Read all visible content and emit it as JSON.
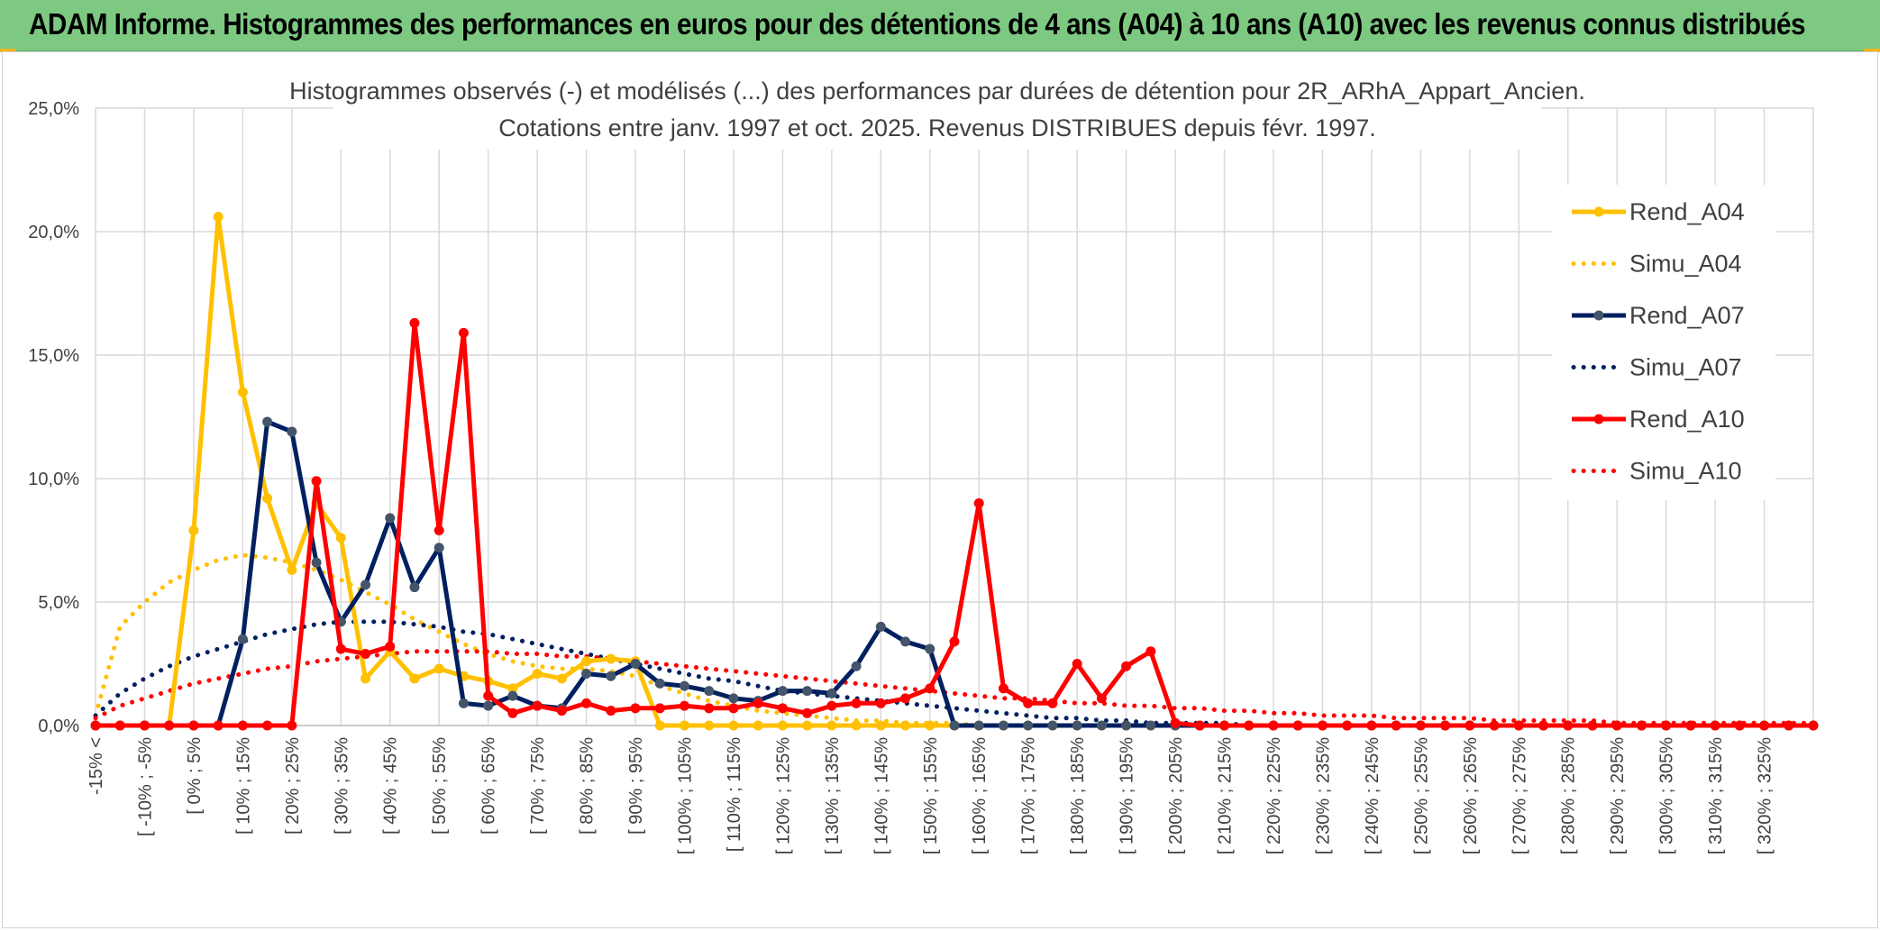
{
  "banner": {
    "title": "ADAM Informe. Histogrammes des performances en euros pour des détentions de 4 ans (A04) à 10 ans (A10) avec les revenus connus distribués"
  },
  "colors": {
    "banner_bg": "#7dc982",
    "a04": "#ffc000",
    "a07": "#002060",
    "a07_marker": "#44546a",
    "a10": "#ff0000",
    "grid": "#d9d9d9"
  },
  "chart_data": {
    "type": "line",
    "title_line1": "Histogrammes observés (-) et modélisés (...) des performances par durées de détention pour 2R_ARhA_Appart_Ancien.",
    "title_line2": "Cotations entre janv. 1997 et oct. 2025. Revenus DISTRIBUES depuis févr. 1997.",
    "ylim": [
      0,
      25
    ],
    "yticks": [
      0,
      5,
      10,
      15,
      20,
      25
    ],
    "ytick_labels": [
      "0,0%",
      "5,0%",
      "10,0%",
      "15,0%",
      "20,0%",
      "25,0%"
    ],
    "grid": true,
    "legend_position": "right",
    "categories": [
      "-15% <",
      "[ -15% ; -10%",
      "[ -10% ; -5%",
      "[ -5% ; 0%",
      "[ 0% ; 5%",
      "[ 5% ; 10%",
      "[ 10% ; 15%",
      "[ 15% ; 20%",
      "[ 20% ; 25%",
      "[ 25% ; 30%",
      "[ 30% ; 35%",
      "[ 35% ; 40%",
      "[ 40% ; 45%",
      "[ 45% ; 50%",
      "[ 50% ; 55%",
      "[ 55% ; 60%",
      "[ 60% ; 65%",
      "[ 65% ; 70%",
      "[ 70% ; 75%",
      "[ 75% ; 80%",
      "[ 80% ; 85%",
      "[ 85% ; 90%",
      "[ 90% ; 95%",
      "[ 95% ; 100%",
      "[ 100% ; 105%",
      "[ 105% ; 110%",
      "[ 110% ; 115%",
      "[ 115% ; 120%",
      "[ 120% ; 125%",
      "[ 125% ; 130%",
      "[ 130% ; 135%",
      "[ 135% ; 140%",
      "[ 140% ; 145%",
      "[ 145% ; 150%",
      "[ 150% ; 155%",
      "[ 155% ; 160%",
      "[ 160% ; 165%",
      "[ 165% ; 170%",
      "[ 170% ; 175%",
      "[ 175% ; 180%",
      "[ 180% ; 185%",
      "[ 185% ; 190%",
      "[ 190% ; 195%",
      "[ 195% ; 200%",
      "[ 200% ; 205%",
      "[ 205% ; 210%",
      "[ 210% ; 215%",
      "[ 215% ; 220%",
      "[ 220% ; 225%",
      "[ 225% ; 230%",
      "[ 230% ; 235%",
      "[ 235% ; 240%",
      "[ 240% ; 245%",
      "[ 245% ; 250%",
      "[ 250% ; 255%",
      "[ 255% ; 260%",
      "[ 260% ; 265%",
      "[ 265% ; 270%",
      "[ 270% ; 275%",
      "[ 275% ; 280%",
      "[ 280% ; 285%",
      "[ 285% ; 290%",
      "[ 290% ; 295%",
      "[ 295% ; 300%",
      "[ 300% ; 305%",
      "[ 305% ; 310%",
      "[ 310% ; 315%",
      "[ 315% ; 320%",
      "[ 320% ; 325%",
      "[ 325% ; 330%",
      "[ 330% ; 335%"
    ],
    "visible_xtick_labels": [
      "-15% <",
      "[ -10% ; -5%",
      "[ 0% ; 5%",
      "[ 10% ; 15%",
      "[ 20% ; 25%",
      "[ 30% ; 35%",
      "[ 40% ; 45%",
      "[ 50% ; 55%",
      "[ 60% ; 65%",
      "[ 70% ; 75%",
      "[ 80% ; 85%",
      "[ 90% ; 95%",
      "[ 100% ; 105%",
      "[ 110% ; 115%",
      "[ 120% ; 125%",
      "[ 130% ; 135%",
      "[ 140% ; 145%",
      "[ 150% ; 155%",
      "[ 160% ; 165%",
      "[ 170% ; 175%",
      "[ 180% ; 185%",
      "[ 190% ; 195%",
      "[ 200% ; 205%",
      "[ 210% ; 215%",
      "[ 220% ; 225%",
      "[ 230% ; 235%",
      "[ 240% ; 245%",
      "[ 250% ; 255%",
      "[ 260% ; 265%",
      "[ 270% ; 275%",
      "[ 280% ; 285%",
      "[ 290% ; 295%",
      "[ 300% ; 305%",
      "[ 310% ; 315%",
      "[ 320% ; 325%"
    ],
    "series": [
      {
        "name": "Rend_A04",
        "style": "solid",
        "color": "#ffc000",
        "values": [
          0,
          0,
          0,
          0,
          7.9,
          20.6,
          13.5,
          9.2,
          6.3,
          9.0,
          7.6,
          1.9,
          3.0,
          1.9,
          2.3,
          2.0,
          1.8,
          1.5,
          2.1,
          1.9,
          2.6,
          2.7,
          2.6,
          0,
          0,
          0,
          0,
          0,
          0,
          0,
          0,
          0,
          0,
          0,
          0,
          0,
          0,
          0,
          0,
          0,
          0,
          0,
          0,
          0,
          0,
          0,
          0,
          0,
          0,
          0,
          0,
          0,
          0,
          0,
          0,
          0,
          0,
          0,
          0,
          0,
          0,
          0,
          0,
          0,
          0,
          0,
          0,
          0,
          0,
          0,
          0
        ]
      },
      {
        "name": "Simu_A04",
        "style": "dotted",
        "color": "#ffc000",
        "values": [
          0.4,
          4.0,
          5.0,
          5.8,
          6.3,
          6.7,
          6.9,
          6.8,
          6.6,
          6.3,
          5.9,
          5.4,
          4.9,
          4.3,
          3.8,
          3.3,
          2.9,
          2.6,
          2.4,
          2.3,
          2.3,
          2.2,
          2.0,
          1.6,
          1.3,
          1.0,
          0.8,
          0.6,
          0.5,
          0.4,
          0.3,
          0.2,
          0.2,
          0.1,
          0.1,
          0.1,
          0,
          0,
          0,
          0,
          0,
          0,
          0,
          0,
          0,
          0,
          0,
          0,
          0,
          0,
          0,
          0,
          0,
          0,
          0,
          0,
          0,
          0,
          0,
          0,
          0,
          0,
          0,
          0,
          0,
          0,
          0,
          0,
          0,
          0,
          0
        ]
      },
      {
        "name": "Rend_A07",
        "style": "solid",
        "color": "#002060",
        "values": [
          0,
          0,
          0,
          0,
          0,
          0,
          3.5,
          12.3,
          11.9,
          6.6,
          4.2,
          5.7,
          8.4,
          5.6,
          7.2,
          0.9,
          0.8,
          1.2,
          0.8,
          0.7,
          2.1,
          2.0,
          2.5,
          1.7,
          1.6,
          1.4,
          1.1,
          1.0,
          1.4,
          1.4,
          1.3,
          2.4,
          4.0,
          3.4,
          3.1,
          0,
          0,
          0,
          0,
          0,
          0,
          0,
          0,
          0,
          0,
          0,
          0,
          0,
          0,
          0,
          0,
          0,
          0,
          0,
          0,
          0,
          0,
          0,
          0,
          0,
          0,
          0,
          0,
          0,
          0,
          0,
          0,
          0,
          0,
          0,
          0
        ]
      },
      {
        "name": "Simu_A07",
        "style": "dotted",
        "color": "#002060",
        "values": [
          0.4,
          1.3,
          1.9,
          2.4,
          2.8,
          3.1,
          3.4,
          3.7,
          3.9,
          4.1,
          4.2,
          4.2,
          4.2,
          4.1,
          4.0,
          3.8,
          3.7,
          3.5,
          3.3,
          3.1,
          2.9,
          2.7,
          2.5,
          2.3,
          2.1,
          1.9,
          1.8,
          1.6,
          1.4,
          1.3,
          1.2,
          1.1,
          1.0,
          0.9,
          0.8,
          0.7,
          0.6,
          0.5,
          0.4,
          0.3,
          0.3,
          0.2,
          0.2,
          0.1,
          0.1,
          0.1,
          0.1,
          0,
          0,
          0,
          0,
          0,
          0,
          0,
          0,
          0,
          0,
          0,
          0,
          0,
          0,
          0,
          0,
          0,
          0,
          0,
          0,
          0,
          0,
          0,
          0
        ]
      },
      {
        "name": "Rend_A10",
        "style": "solid",
        "color": "#ff0000",
        "values": [
          0,
          0,
          0,
          0,
          0,
          0,
          0,
          0,
          0,
          9.9,
          3.1,
          2.9,
          3.2,
          16.3,
          7.9,
          15.9,
          1.2,
          0.5,
          0.8,
          0.6,
          0.9,
          0.6,
          0.7,
          0.7,
          0.8,
          0.7,
          0.7,
          0.9,
          0.7,
          0.5,
          0.8,
          0.9,
          0.9,
          1.1,
          1.5,
          3.4,
          9.0,
          1.5,
          0.9,
          0.9,
          2.5,
          1.1,
          2.4,
          3.0,
          0.1,
          0,
          0,
          0,
          0,
          0,
          0,
          0,
          0,
          0,
          0,
          0,
          0,
          0,
          0,
          0,
          0,
          0,
          0,
          0,
          0,
          0,
          0,
          0,
          0,
          0,
          0
        ]
      },
      {
        "name": "Simu_A10",
        "style": "dotted",
        "color": "#ff0000",
        "values": [
          0.3,
          0.8,
          1.1,
          1.4,
          1.7,
          1.9,
          2.1,
          2.3,
          2.4,
          2.6,
          2.7,
          2.8,
          2.9,
          3.0,
          3.0,
          3.0,
          3.0,
          2.9,
          2.9,
          2.8,
          2.8,
          2.7,
          2.6,
          2.5,
          2.4,
          2.3,
          2.2,
          2.1,
          2.0,
          1.9,
          1.8,
          1.7,
          1.6,
          1.5,
          1.4,
          1.3,
          1.2,
          1.1,
          1.1,
          1.0,
          0.9,
          0.9,
          0.8,
          0.8,
          0.7,
          0.7,
          0.6,
          0.6,
          0.5,
          0.5,
          0.4,
          0.4,
          0.4,
          0.3,
          0.3,
          0.3,
          0.3,
          0.2,
          0.2,
          0.2,
          0.2,
          0.2,
          0.1,
          0.1,
          0.1,
          0.1,
          0.1,
          0.1,
          0.1,
          0.1,
          0.1
        ]
      }
    ]
  }
}
